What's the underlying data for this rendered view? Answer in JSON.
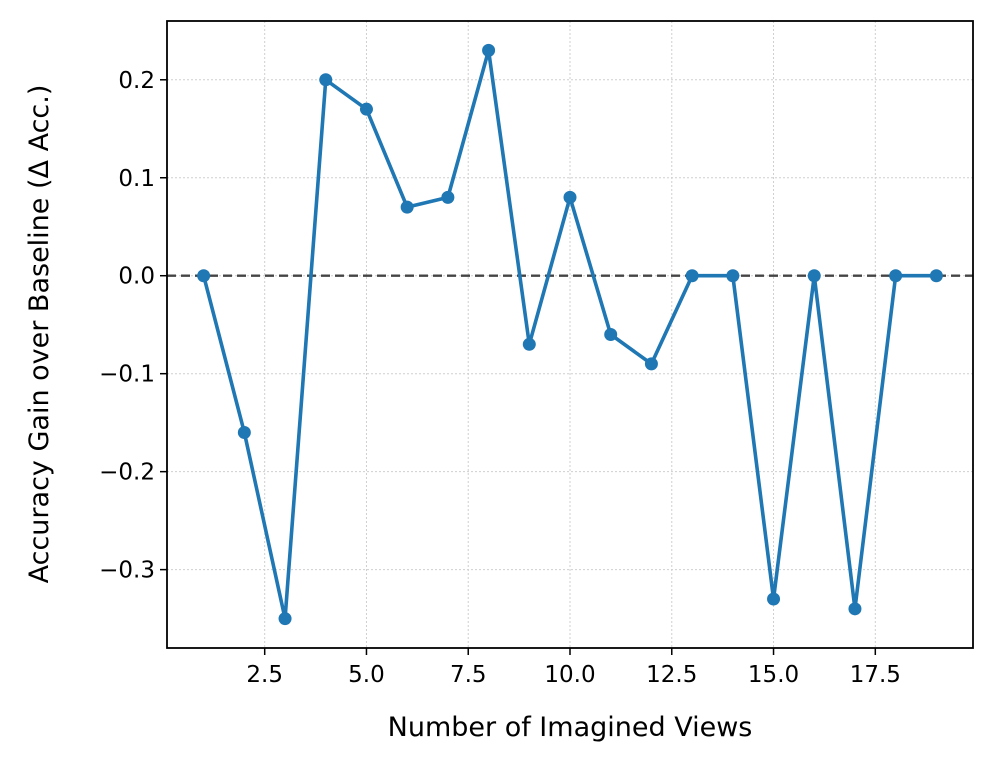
{
  "chart_data": {
    "type": "line",
    "title": "",
    "xlabel": "Number of Imagined Views",
    "ylabel": "Accuracy Gain over Baseline (Δ Acc.)",
    "xlim": [
      0.1,
      19.9
    ],
    "ylim": [
      -0.38,
      0.26
    ],
    "xticks": [
      2.5,
      5.0,
      7.5,
      10.0,
      12.5,
      15.0,
      17.5
    ],
    "xtick_labels": [
      "2.5",
      "5.0",
      "7.5",
      "10.0",
      "12.5",
      "15.0",
      "17.5"
    ],
    "yticks": [
      -0.3,
      -0.2,
      -0.1,
      0.0,
      0.1,
      0.2
    ],
    "ytick_labels": [
      "−0.3",
      "−0.2",
      "−0.1",
      "0.0",
      "0.1",
      "0.2"
    ],
    "grid": true,
    "reference_line": {
      "y": 0.0,
      "style": "dashed",
      "color": "#444444"
    },
    "series": [
      {
        "color": "#1f77b4",
        "marker": "circle",
        "x": [
          1,
          2,
          3,
          4,
          5,
          6,
          7,
          8,
          9,
          10,
          11,
          12,
          13,
          14,
          15,
          16,
          17,
          18,
          19
        ],
        "y": [
          0.0,
          -0.16,
          -0.35,
          0.2,
          0.17,
          0.07,
          0.08,
          0.23,
          -0.07,
          0.08,
          -0.06,
          -0.09,
          0.0,
          0.0,
          -0.33,
          0.0,
          -0.34,
          0.0,
          0.0
        ]
      }
    ]
  }
}
